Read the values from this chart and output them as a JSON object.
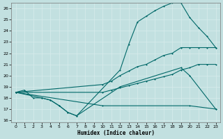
{
  "xlabel": "Humidex (Indice chaleur)",
  "xlim": [
    -0.5,
    23.5
  ],
  "ylim": [
    15.8,
    26.5
  ],
  "xticks": [
    0,
    1,
    2,
    3,
    4,
    5,
    6,
    7,
    8,
    9,
    10,
    11,
    12,
    13,
    14,
    15,
    16,
    17,
    18,
    19,
    20,
    21,
    22,
    23
  ],
  "yticks": [
    16,
    17,
    18,
    19,
    20,
    21,
    22,
    23,
    24,
    25,
    26
  ],
  "bg_color": "#c2e0e0",
  "grid_color": "#d8ecec",
  "line_color": "#006868",
  "line1_x": [
    0,
    1,
    2,
    3,
    4,
    5,
    6,
    7,
    12,
    19,
    20,
    23
  ],
  "line1_y": [
    18.5,
    18.7,
    18.0,
    18.0,
    17.8,
    17.3,
    16.7,
    16.4,
    19.0,
    20.7,
    20.0,
    17.0
  ],
  "line2_x": [
    0,
    3,
    4,
    5,
    6,
    7,
    12,
    13,
    14,
    15,
    16,
    17,
    18,
    19,
    20,
    21,
    22,
    23
  ],
  "line2_y": [
    18.5,
    18.0,
    17.8,
    17.3,
    16.7,
    16.4,
    20.5,
    22.8,
    24.8,
    25.3,
    25.8,
    26.2,
    26.5,
    26.5,
    25.2,
    24.3,
    23.5,
    22.5
  ],
  "line3_x": [
    0,
    10,
    11,
    12,
    13,
    14,
    15,
    16,
    17,
    18,
    19,
    20,
    21,
    22,
    23
  ],
  "line3_y": [
    18.5,
    19.2,
    19.5,
    20.0,
    20.4,
    20.8,
    21.0,
    21.4,
    21.8,
    22.0,
    22.5,
    22.5,
    22.5,
    22.5,
    22.5
  ],
  "line4_x": [
    0,
    10,
    11,
    12,
    13,
    14,
    15,
    16,
    17,
    18,
    19,
    20,
    21,
    22,
    23
  ],
  "line4_y": [
    18.5,
    18.5,
    18.7,
    18.9,
    19.1,
    19.3,
    19.5,
    19.7,
    19.9,
    20.1,
    20.5,
    20.7,
    21.0,
    21.0,
    21.0
  ],
  "line5_x": [
    0,
    10,
    20,
    23
  ],
  "line5_y": [
    18.5,
    17.3,
    17.3,
    17.0
  ]
}
